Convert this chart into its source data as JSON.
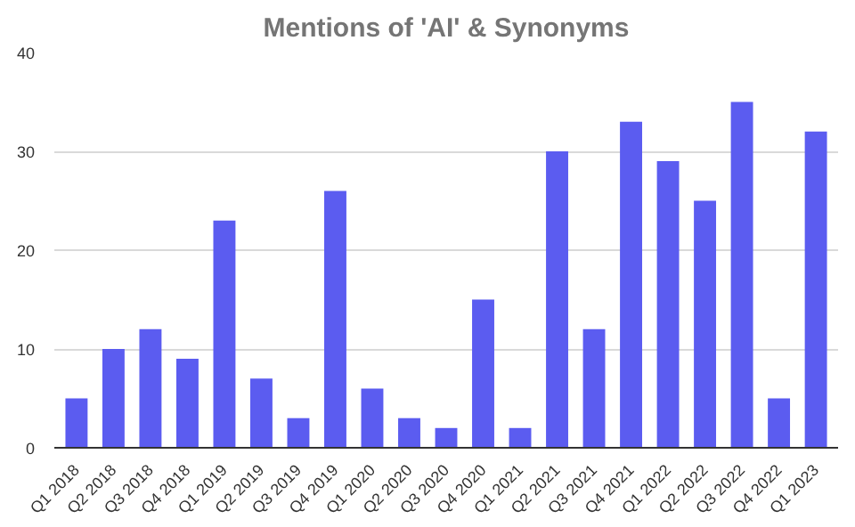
{
  "chart_data": {
    "type": "bar",
    "title": "Mentions of 'AI' & Synonyms",
    "categories": [
      "Q1 2018",
      "Q2 2018",
      "Q3 2018",
      "Q4 2018",
      "Q1 2019",
      "Q2 2019",
      "Q3 2019",
      "Q4 2019",
      "Q1 2020",
      "Q2 2020",
      "Q3 2020",
      "Q4 2020",
      "Q1 2021",
      "Q2 2021",
      "Q3 2021",
      "Q4 2021",
      "Q1 2022",
      "Q2 2022",
      "Q3 2022",
      "Q4 2022",
      "Q1 2023"
    ],
    "values": [
      5,
      10,
      12,
      9,
      23,
      7,
      3,
      26,
      6,
      3,
      2,
      15,
      2,
      30,
      12,
      33,
      29,
      25,
      35,
      5,
      32
    ],
    "color": "#5b5cf0",
    "ylim": [
      0,
      40
    ],
    "yticks": [
      0,
      10,
      20,
      30,
      40
    ],
    "grid": "y"
  }
}
